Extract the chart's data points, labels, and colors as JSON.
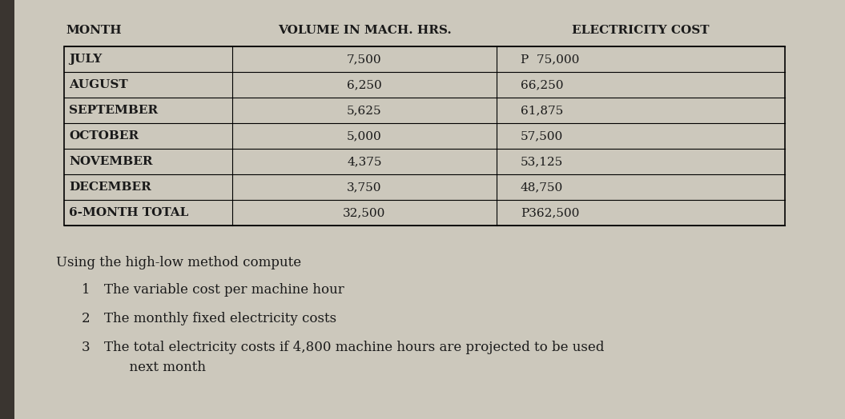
{
  "header_col1": "MONTH",
  "header_col2": "VOLUME IN MACH. HRS.",
  "header_col3": "ELECTRICITY COST",
  "rows": [
    [
      "JULY",
      "7,500",
      "P  75,000"
    ],
    [
      "AUGUST",
      "6,250",
      "66,250"
    ],
    [
      "SEPTEMBER",
      "5,625",
      "61,875"
    ],
    [
      "OCTOBER",
      "5,000",
      "57,500"
    ],
    [
      "NOVEMBER",
      "4,375",
      "53,125"
    ],
    [
      "DECEMBER",
      "3,750",
      "48,750"
    ],
    [
      "6-MONTH TOTAL",
      "32,500",
      "P362,500"
    ]
  ],
  "instructions_title": "Using the high-low method compute",
  "instructions": [
    [
      "1",
      "The variable cost per machine hour"
    ],
    [
      "2",
      "The monthly fixed electricity costs"
    ],
    [
      "3",
      "The total electricity costs if 4,800 machine hours are projected to be used\n      next month"
    ]
  ],
  "bg_color": "#ccc8bc",
  "left_bar_color": "#4a4a4a",
  "text_color": "#1a1a1a",
  "font_size_header": 11,
  "font_size_body": 11,
  "font_size_instructions": 12
}
